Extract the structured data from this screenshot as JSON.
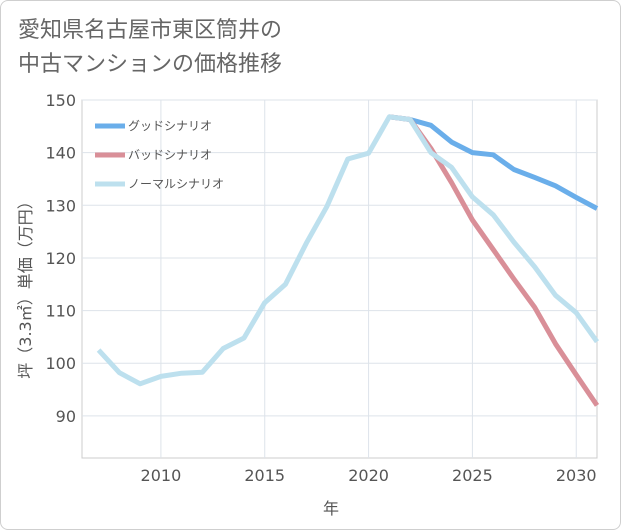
{
  "title_line1": "愛知県名古屋市東区筒井の",
  "title_line2": "中古マンションの価格推移",
  "chart_data": {
    "type": "line",
    "title": "愛知県名古屋市東区筒井の中古マンションの価格推移",
    "xlabel": "年",
    "ylabel": "坪（3.3㎡）単価（万円）",
    "xlim": [
      2006.2,
      2031
    ],
    "ylim": [
      82,
      150
    ],
    "xticks": [
      2010,
      2015,
      2020,
      2025,
      2030
    ],
    "yticks": [
      90,
      100,
      110,
      120,
      130,
      140,
      150
    ],
    "grid": true,
    "legend_position": "top-left",
    "series": [
      {
        "name": "グッドシナリオ",
        "color": "#6aaeea",
        "x": [
          2021,
          2022,
          2023,
          2024,
          2025,
          2026,
          2027,
          2028,
          2029,
          2030,
          2031
        ],
        "y": [
          146.8,
          146.3,
          145.2,
          142.0,
          140.0,
          139.6,
          136.8,
          135.3,
          133.7,
          131.5,
          129.4
        ]
      },
      {
        "name": "バッドシナリオ",
        "color": "#d98f98",
        "x": [
          2021,
          2022,
          2023,
          2024,
          2025,
          2026,
          2027,
          2028,
          2029,
          2030,
          2031
        ],
        "y": [
          146.8,
          146.3,
          140.8,
          134.3,
          127.2,
          121.6,
          116.0,
          110.6,
          103.7,
          97.8,
          92.0
        ]
      },
      {
        "name": "ノーマルシナリオ",
        "color": "#bde0ee",
        "x": [
          2007,
          2008,
          2009,
          2010,
          2011,
          2012,
          2013,
          2014,
          2015,
          2016,
          2017,
          2018,
          2019,
          2020,
          2021,
          2022,
          2023,
          2024,
          2025,
          2026,
          2027,
          2028,
          2029,
          2030,
          2031
        ],
        "y": [
          102.5,
          98.2,
          96.1,
          97.5,
          98.1,
          98.3,
          102.8,
          104.8,
          111.5,
          115.0,
          122.8,
          129.8,
          138.8,
          139.9,
          146.8,
          146.3,
          140.0,
          137.2,
          131.6,
          128.2,
          123.0,
          118.3,
          112.9,
          109.6,
          104.1
        ]
      }
    ]
  }
}
